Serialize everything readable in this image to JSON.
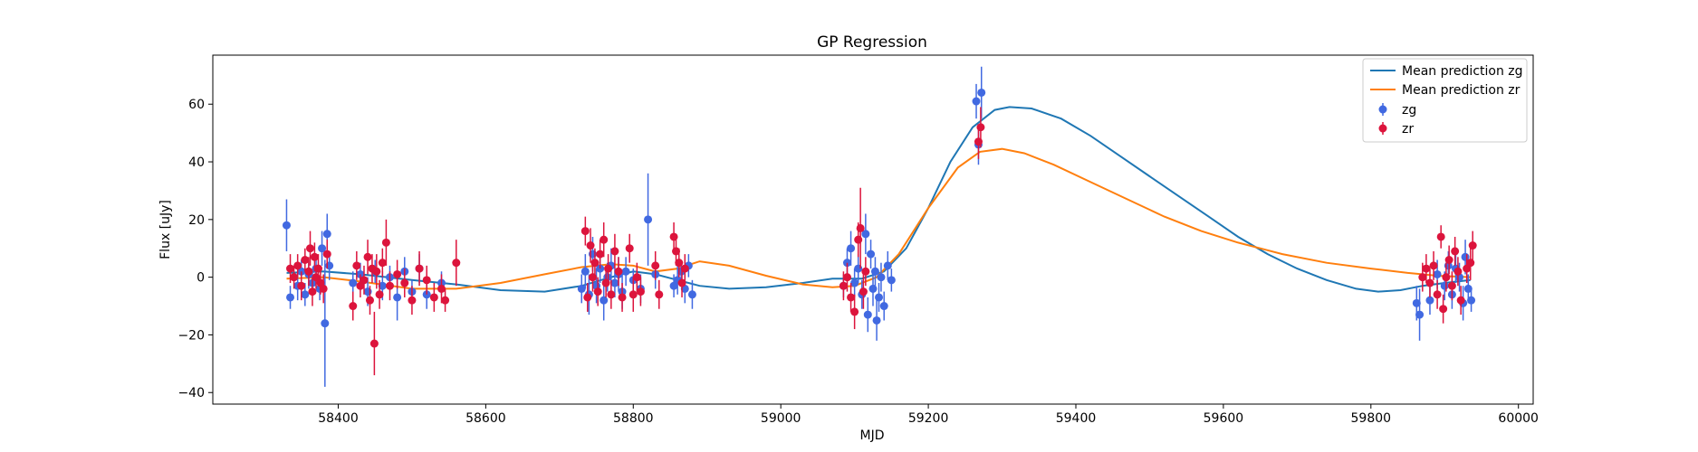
{
  "chart_data": {
    "type": "scatter",
    "title": "GP Regression",
    "xlabel": "MJD",
    "ylabel": "Flux [uJy]",
    "xlim": [
      58230,
      60020
    ],
    "ylim": [
      -44,
      77
    ],
    "xticks": [
      58400,
      58600,
      58800,
      59000,
      59200,
      59400,
      59600,
      59800,
      60000
    ],
    "yticks": [
      -40,
      -20,
      0,
      20,
      40,
      60
    ],
    "grid": false,
    "legend_position": "top-right",
    "legend": [
      "Mean prediction zg",
      "Mean prediction zr",
      "zg",
      "zr"
    ],
    "lines": [
      {
        "name": "Mean prediction zg",
        "color": "#1f77b4",
        "x": [
          58330,
          58380,
          58430,
          58500,
          58560,
          58620,
          58680,
          58730,
          58770,
          58800,
          58830,
          58860,
          58890,
          58930,
          58980,
          59030,
          59070,
          59110,
          59140,
          59170,
          59200,
          59230,
          59260,
          59290,
          59310,
          59340,
          59380,
          59420,
          59460,
          59500,
          59540,
          59580,
          59620,
          59660,
          59700,
          59740,
          59780,
          59810,
          59840,
          59870,
          59900,
          59935
        ],
        "y": [
          1.5,
          2,
          1,
          -1,
          -2.5,
          -4.5,
          -5,
          -3,
          0,
          2,
          1,
          -1,
          -3,
          -4,
          -3.5,
          -2,
          -0.5,
          -0.5,
          2,
          10,
          24,
          40,
          52,
          58,
          59,
          58.5,
          55,
          49,
          42,
          35,
          28,
          21,
          14,
          8,
          3,
          -1,
          -4,
          -5,
          -4.5,
          -3,
          -2,
          -1
        ]
      },
      {
        "name": "Mean prediction zr",
        "color": "#ff7f0e",
        "x": [
          58330,
          58380,
          58430,
          58500,
          58560,
          58620,
          58680,
          58730,
          58770,
          58800,
          58830,
          58860,
          58890,
          58930,
          58980,
          59030,
          59070,
          59100,
          59130,
          59160,
          59200,
          59240,
          59270,
          59300,
          59330,
          59370,
          59420,
          59470,
          59520,
          59570,
          59620,
          59680,
          59740,
          59800,
          59850,
          59890,
          59935
        ],
        "y": [
          -0.5,
          0,
          -1.5,
          -4,
          -4,
          -2,
          1,
          3.5,
          4.5,
          4,
          2,
          3,
          5.5,
          4,
          0.5,
          -2.5,
          -3.5,
          -3,
          0,
          8,
          24,
          38,
          43.5,
          44.5,
          43,
          39,
          33,
          27,
          21,
          16,
          12,
          8,
          5,
          3,
          1.5,
          0.5,
          0
        ]
      }
    ],
    "series": [
      {
        "name": "zg",
        "color": "#4169e1",
        "points": [
          [
            58330,
            18,
            9
          ],
          [
            58335,
            -7,
            4
          ],
          [
            58345,
            -3,
            5
          ],
          [
            58350,
            2,
            4
          ],
          [
            58355,
            -6,
            4
          ],
          [
            58360,
            1,
            5
          ],
          [
            58365,
            -2,
            4
          ],
          [
            58370,
            3,
            5
          ],
          [
            58375,
            -4,
            4
          ],
          [
            58378,
            10,
            6
          ],
          [
            58382,
            -16,
            22
          ],
          [
            58385,
            15,
            7
          ],
          [
            58388,
            4,
            5
          ],
          [
            58420,
            -2,
            4
          ],
          [
            58430,
            1,
            4
          ],
          [
            58440,
            -5,
            5
          ],
          [
            58450,
            2,
            4
          ],
          [
            58460,
            -3,
            5
          ],
          [
            58470,
            0,
            4
          ],
          [
            58480,
            -7,
            8
          ],
          [
            58490,
            2,
            5
          ],
          [
            58500,
            -5,
            4
          ],
          [
            58510,
            3,
            5
          ],
          [
            58520,
            -6,
            5
          ],
          [
            58540,
            -2,
            4
          ],
          [
            58730,
            -4,
            5
          ],
          [
            58735,
            2,
            6
          ],
          [
            58740,
            -6,
            7
          ],
          [
            58745,
            8,
            6
          ],
          [
            58750,
            -3,
            6
          ],
          [
            58755,
            3,
            5
          ],
          [
            58760,
            -8,
            7
          ],
          [
            58765,
            0,
            5
          ],
          [
            58770,
            4,
            6
          ],
          [
            58775,
            -2,
            5
          ],
          [
            58780,
            1,
            6
          ],
          [
            58785,
            -5,
            6
          ],
          [
            58790,
            2,
            5
          ],
          [
            58800,
            -1,
            4
          ],
          [
            58810,
            -4,
            5
          ],
          [
            58820,
            20,
            16
          ],
          [
            58830,
            1,
            5
          ],
          [
            58855,
            -3,
            4
          ],
          [
            58860,
            -1,
            5
          ],
          [
            58865,
            2,
            4
          ],
          [
            58870,
            -4,
            5
          ],
          [
            58875,
            4,
            4
          ],
          [
            58880,
            -6,
            5
          ],
          [
            59085,
            -3,
            4
          ],
          [
            59090,
            5,
            5
          ],
          [
            59095,
            10,
            6
          ],
          [
            59100,
            -2,
            5
          ],
          [
            59105,
            3,
            5
          ],
          [
            59110,
            -6,
            5
          ],
          [
            59115,
            15,
            7
          ],
          [
            59118,
            -13,
            6
          ],
          [
            59122,
            8,
            5
          ],
          [
            59125,
            -4,
            6
          ],
          [
            59128,
            2,
            5
          ],
          [
            59130,
            -15,
            7
          ],
          [
            59133,
            -7,
            5
          ],
          [
            59136,
            0,
            5
          ],
          [
            59140,
            -10,
            5
          ],
          [
            59145,
            4,
            5
          ],
          [
            59150,
            -1,
            4
          ],
          [
            59265,
            61,
            6
          ],
          [
            59268,
            46,
            7
          ],
          [
            59272,
            64,
            9
          ],
          [
            59862,
            -9,
            6
          ],
          [
            59866,
            -13,
            9
          ],
          [
            59880,
            -8,
            5
          ],
          [
            59890,
            1,
            5
          ],
          [
            59900,
            -3,
            5
          ],
          [
            59905,
            4,
            5
          ],
          [
            59910,
            -6,
            5
          ],
          [
            59915,
            3,
            5
          ],
          [
            59920,
            0,
            5
          ],
          [
            59925,
            -9,
            6
          ],
          [
            59928,
            7,
            6
          ],
          [
            59932,
            -4,
            5
          ],
          [
            59936,
            -8,
            4
          ]
        ]
      },
      {
        "name": "zr",
        "color": "#dc143c",
        "points": [
          [
            58335,
            3,
            5
          ],
          [
            58340,
            0,
            4
          ],
          [
            58345,
            4,
            4
          ],
          [
            58350,
            -3,
            5
          ],
          [
            58355,
            6,
            4
          ],
          [
            58360,
            2,
            5
          ],
          [
            58362,
            10,
            6
          ],
          [
            58365,
            -5,
            5
          ],
          [
            58368,
            7,
            5
          ],
          [
            58370,
            0,
            4
          ],
          [
            58373,
            3,
            5
          ],
          [
            58376,
            -2,
            4
          ],
          [
            58380,
            -4,
            5
          ],
          [
            58385,
            8,
            5
          ],
          [
            58420,
            -10,
            5
          ],
          [
            58425,
            4,
            5
          ],
          [
            58430,
            -3,
            4
          ],
          [
            58435,
            -1,
            5
          ],
          [
            58440,
            7,
            6
          ],
          [
            58443,
            -8,
            5
          ],
          [
            58446,
            3,
            5
          ],
          [
            58449,
            -23,
            11
          ],
          [
            58452,
            2,
            6
          ],
          [
            58456,
            -6,
            5
          ],
          [
            58460,
            5,
            5
          ],
          [
            58465,
            12,
            8
          ],
          [
            58470,
            -3,
            5
          ],
          [
            58480,
            1,
            5
          ],
          [
            58490,
            -2,
            5
          ],
          [
            58500,
            -8,
            5
          ],
          [
            58510,
            3,
            6
          ],
          [
            58520,
            -1,
            5
          ],
          [
            58530,
            -7,
            5
          ],
          [
            58540,
            -4,
            5
          ],
          [
            58545,
            -8,
            4
          ],
          [
            58560,
            5,
            8
          ],
          [
            58735,
            16,
            5
          ],
          [
            58738,
            -7,
            5
          ],
          [
            58742,
            11,
            6
          ],
          [
            58745,
            0,
            5
          ],
          [
            58748,
            5,
            5
          ],
          [
            58752,
            -5,
            5
          ],
          [
            58755,
            8,
            5
          ],
          [
            58760,
            13,
            6
          ],
          [
            58763,
            -2,
            5
          ],
          [
            58766,
            3,
            5
          ],
          [
            58770,
            -6,
            5
          ],
          [
            58775,
            9,
            6
          ],
          [
            58780,
            2,
            5
          ],
          [
            58785,
            -7,
            5
          ],
          [
            58795,
            10,
            5
          ],
          [
            58800,
            -6,
            6
          ],
          [
            58805,
            0,
            5
          ],
          [
            58810,
            -5,
            5
          ],
          [
            58830,
            4,
            5
          ],
          [
            58835,
            -6,
            5
          ],
          [
            58855,
            14,
            5
          ],
          [
            58858,
            9,
            5
          ],
          [
            58862,
            5,
            5
          ],
          [
            58866,
            -2,
            5
          ],
          [
            58870,
            3,
            5
          ],
          [
            59085,
            -3,
            5
          ],
          [
            59090,
            0,
            5
          ],
          [
            59095,
            -7,
            5
          ],
          [
            59100,
            -12,
            6
          ],
          [
            59105,
            13,
            6
          ],
          [
            59108,
            17,
            14
          ],
          [
            59112,
            -5,
            6
          ],
          [
            59115,
            2,
            5
          ],
          [
            59268,
            47,
            6
          ],
          [
            59271,
            52,
            7
          ],
          [
            59870,
            0,
            5
          ],
          [
            59875,
            3,
            5
          ],
          [
            59880,
            -2,
            5
          ],
          [
            59885,
            4,
            5
          ],
          [
            59890,
            -6,
            5
          ],
          [
            59895,
            14,
            4
          ],
          [
            59898,
            -11,
            5
          ],
          [
            59902,
            0,
            5
          ],
          [
            59906,
            6,
            5
          ],
          [
            59910,
            -3,
            5
          ],
          [
            59914,
            9,
            5
          ],
          [
            59918,
            2,
            5
          ],
          [
            59922,
            -8,
            5
          ],
          [
            59930,
            3,
            5
          ],
          [
            59935,
            5,
            6
          ],
          [
            59938,
            11,
            5
          ]
        ]
      }
    ]
  }
}
